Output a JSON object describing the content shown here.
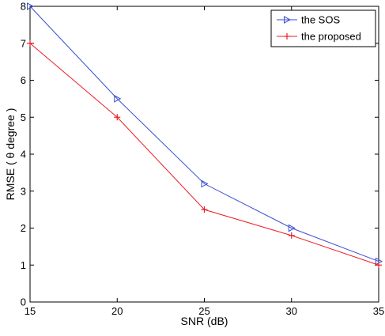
{
  "chart_data": {
    "type": "line",
    "title": "",
    "xlabel": "SNR (dB)",
    "ylabel": "RMSE ( θ degree )",
    "x": [
      15,
      20,
      25,
      30,
      35
    ],
    "xlim": [
      15,
      35
    ],
    "ylim": [
      0,
      8
    ],
    "xticks": [
      15,
      20,
      25,
      30,
      35
    ],
    "yticks": [
      0,
      1,
      2,
      3,
      4,
      5,
      6,
      7,
      8
    ],
    "grid": false,
    "legend_position": "top-right",
    "series": [
      {
        "name": "the SOS",
        "values": [
          8.0,
          5.5,
          3.2,
          2.0,
          1.1
        ],
        "color": "#3a4fd0",
        "marker": "triangle-right"
      },
      {
        "name": "the proposed",
        "values": [
          7.0,
          5.0,
          2.5,
          1.8,
          1.0
        ],
        "color": "#ee1c25",
        "marker": "plus"
      }
    ]
  }
}
